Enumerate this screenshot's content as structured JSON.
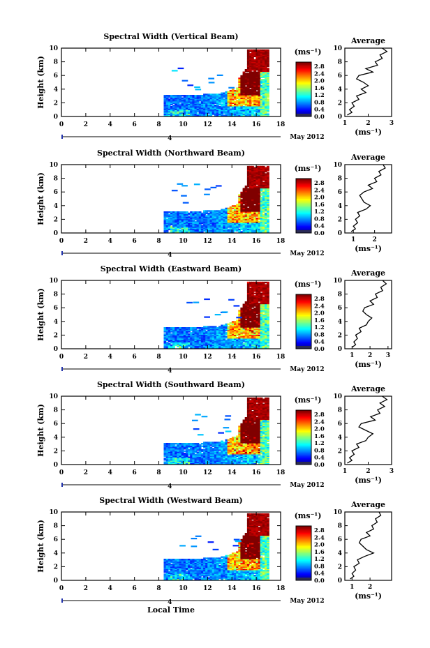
{
  "colorbar_unit": "(ms⁻¹)",
  "colorbar_ticks": [
    "2.8",
    "2.4",
    "2.0",
    "1.6",
    "1.2",
    "0.8",
    "0.4",
    "0.0"
  ],
  "x_ticks": [
    "0",
    "2",
    "4",
    "6",
    "8",
    "10",
    "12",
    "14",
    "16",
    "18"
  ],
  "y_ticks": [
    "0",
    "2",
    "4",
    "6",
    "8",
    "10"
  ],
  "ylabel": "Height (km)",
  "xlabel": "Local Time",
  "date_day": "4",
  "date_text": "May 2012",
  "avg_title": "Average",
  "avg_unit": "(ms⁻¹)",
  "chart_data": [
    {
      "type": "heatmap",
      "title": "Spectral Width (Vertical Beam)",
      "ylabel": "Height (km)",
      "xlim": [
        0,
        18
      ],
      "ylim": [
        0,
        10
      ],
      "clim": [
        0.0,
        3.0
      ],
      "average_profile": {
        "xlim": [
          1,
          3
        ],
        "x_ticks": [
          "1",
          "2",
          "3"
        ],
        "y_ticks": [
          "0",
          "2",
          "4",
          "6",
          "8",
          "10"
        ],
        "values_by_height": [
          [
            0.2,
            1.1
          ],
          [
            0.6,
            1.3
          ],
          [
            1.0,
            1.2
          ],
          [
            1.5,
            1.4
          ],
          [
            2.0,
            1.3
          ],
          [
            2.5,
            1.6
          ],
          [
            3.0,
            1.5
          ],
          [
            3.5,
            1.9
          ],
          [
            4.0,
            1.7
          ],
          [
            4.5,
            2.0
          ],
          [
            5.0,
            1.8
          ],
          [
            5.5,
            1.5
          ],
          [
            6.0,
            1.6
          ],
          [
            6.5,
            2.2
          ],
          [
            7.0,
            1.9
          ],
          [
            7.5,
            2.4
          ],
          [
            8.0,
            2.3
          ],
          [
            8.5,
            2.6
          ],
          [
            9.0,
            2.5
          ],
          [
            9.5,
            2.8
          ],
          [
            10.0,
            2.6
          ]
        ]
      }
    },
    {
      "type": "heatmap",
      "title": "Spectral Width (Northward Beam)",
      "ylabel": "Height (km)",
      "xlim": [
        0,
        18
      ],
      "ylim": [
        0,
        10
      ],
      "clim": [
        0.0,
        3.0
      ],
      "average_profile": {
        "xlim": [
          0.6,
          2.8
        ],
        "x_ticks": [
          "1",
          "2"
        ],
        "y_ticks": [
          "0",
          "2",
          "4",
          "6",
          "8",
          "10"
        ],
        "values_by_height": [
          [
            0.2,
            0.9
          ],
          [
            0.6,
            1.1
          ],
          [
            1.0,
            1.0
          ],
          [
            1.5,
            1.2
          ],
          [
            2.0,
            1.1
          ],
          [
            2.5,
            1.3
          ],
          [
            3.0,
            1.2
          ],
          [
            3.5,
            1.6
          ],
          [
            4.0,
            1.8
          ],
          [
            4.5,
            1.5
          ],
          [
            5.0,
            1.4
          ],
          [
            5.5,
            1.3
          ],
          [
            6.0,
            1.5
          ],
          [
            6.5,
            1.9
          ],
          [
            7.0,
            1.7
          ],
          [
            7.5,
            2.1
          ],
          [
            8.0,
            2.0
          ],
          [
            8.5,
            2.3
          ],
          [
            9.0,
            2.2
          ],
          [
            9.5,
            2.5
          ],
          [
            10.0,
            2.4
          ]
        ]
      }
    },
    {
      "type": "heatmap",
      "title": "Spectral Width (Eastward Beam)",
      "ylabel": "Height (km)",
      "xlim": [
        0,
        18
      ],
      "ylim": [
        0,
        10
      ],
      "clim": [
        0.0,
        3.0
      ],
      "average_profile": {
        "xlim": [
          0.6,
          3.2
        ],
        "x_ticks": [
          "1",
          "2",
          "3"
        ],
        "y_ticks": [
          "0",
          "2",
          "4",
          "6",
          "8",
          "10"
        ],
        "values_by_height": [
          [
            0.2,
            1.0
          ],
          [
            0.6,
            1.2
          ],
          [
            1.0,
            1.1
          ],
          [
            1.5,
            1.3
          ],
          [
            2.0,
            1.2
          ],
          [
            2.5,
            1.5
          ],
          [
            3.0,
            1.4
          ],
          [
            3.5,
            1.8
          ],
          [
            4.0,
            1.9
          ],
          [
            4.5,
            2.1
          ],
          [
            5.0,
            1.8
          ],
          [
            5.5,
            1.6
          ],
          [
            6.0,
            1.7
          ],
          [
            6.5,
            2.2
          ],
          [
            7.0,
            2.0
          ],
          [
            7.5,
            2.4
          ],
          [
            8.0,
            2.3
          ],
          [
            8.5,
            2.7
          ],
          [
            9.0,
            2.6
          ],
          [
            9.5,
            2.9
          ],
          [
            10.0,
            2.7
          ]
        ]
      }
    },
    {
      "type": "heatmap",
      "title": "Spectral Width (Southward Beam)",
      "ylabel": "Height (km)",
      "xlim": [
        0,
        18
      ],
      "ylim": [
        0,
        10
      ],
      "clim": [
        0.0,
        3.0
      ],
      "average_profile": {
        "xlim": [
          1,
          3
        ],
        "x_ticks": [
          "1",
          "2",
          "3"
        ],
        "y_ticks": [
          "0",
          "2",
          "4",
          "6",
          "8",
          "10"
        ],
        "values_by_height": [
          [
            0.2,
            1.1
          ],
          [
            0.6,
            1.3
          ],
          [
            1.0,
            1.2
          ],
          [
            1.5,
            1.4
          ],
          [
            2.0,
            1.3
          ],
          [
            2.5,
            1.6
          ],
          [
            3.0,
            1.5
          ],
          [
            3.5,
            1.9
          ],
          [
            4.0,
            2.0
          ],
          [
            4.5,
            2.2
          ],
          [
            5.0,
            1.9
          ],
          [
            5.5,
            1.6
          ],
          [
            6.0,
            1.7
          ],
          [
            6.5,
            2.3
          ],
          [
            7.0,
            2.1
          ],
          [
            7.5,
            2.5
          ],
          [
            8.0,
            2.4
          ],
          [
            8.5,
            2.7
          ],
          [
            9.0,
            2.5
          ],
          [
            9.5,
            2.8
          ],
          [
            10.0,
            2.6
          ]
        ]
      }
    },
    {
      "type": "heatmap",
      "title": "Spectral Width (Westward Beam)",
      "ylabel": "Height (km)",
      "xlim": [
        0,
        18
      ],
      "ylim": [
        0,
        10
      ],
      "clim": [
        0.0,
        3.0
      ],
      "average_profile": {
        "xlim": [
          0.6,
          3.2
        ],
        "x_ticks": [
          "1",
          "2"
        ],
        "y_ticks": [
          "0",
          "2",
          "4",
          "6",
          "8",
          "10"
        ],
        "values_by_height": [
          [
            0.2,
            0.9
          ],
          [
            0.6,
            1.1
          ],
          [
            1.0,
            1.0
          ],
          [
            1.5,
            1.2
          ],
          [
            2.0,
            1.1
          ],
          [
            2.5,
            1.4
          ],
          [
            3.0,
            1.3
          ],
          [
            3.5,
            1.7
          ],
          [
            4.0,
            2.2
          ],
          [
            4.5,
            1.8
          ],
          [
            5.0,
            1.6
          ],
          [
            5.5,
            1.4
          ],
          [
            6.0,
            1.5
          ],
          [
            6.5,
            2.0
          ],
          [
            7.0,
            1.8
          ],
          [
            7.5,
            2.2
          ],
          [
            8.0,
            2.1
          ],
          [
            8.5,
            2.4
          ],
          [
            9.0,
            2.3
          ],
          [
            9.5,
            2.6
          ],
          [
            10.0,
            2.5
          ]
        ]
      }
    }
  ]
}
